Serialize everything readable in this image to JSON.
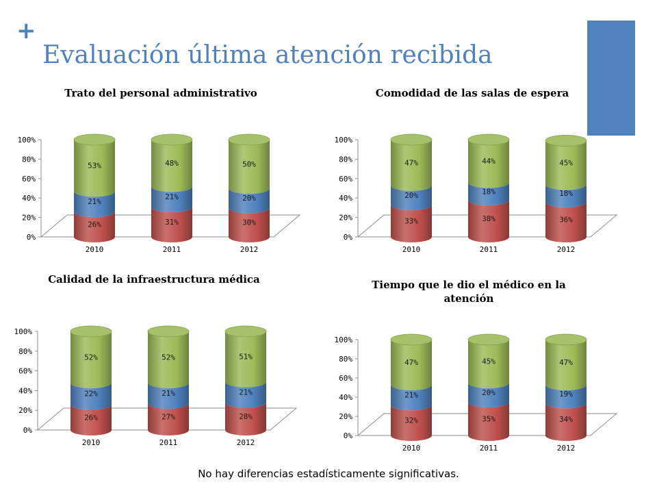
{
  "slide": {
    "title": "Evaluación última atención recibida",
    "footnote": "No hay diferencias estadísticamente significativas.",
    "accent_color": "#4F81BD"
  },
  "chart_data": [
    {
      "type": "bar",
      "title": "Trato del personal administrativo",
      "categories": [
        "2010",
        "2011",
        "2012"
      ],
      "stacked": true,
      "ylim": [
        0,
        100
      ],
      "yticks": [
        "0%",
        "20%",
        "40%",
        "60%",
        "80%",
        "100%"
      ],
      "series": [
        {
          "color": "#C0504D",
          "values": [
            26,
            31,
            30
          ],
          "labels": [
            "26%",
            "31%",
            "30%"
          ]
        },
        {
          "color": "#4F81BD",
          "values": [
            21,
            21,
            20
          ],
          "labels": [
            "21%",
            "21%",
            "20%"
          ]
        },
        {
          "color": "#9BBB59",
          "values": [
            53,
            48,
            50
          ],
          "labels": [
            "53%",
            "48%",
            "50%"
          ]
        }
      ]
    },
    {
      "type": "bar",
      "title": "Comodidad de las salas de espera",
      "categories": [
        "2010",
        "2011",
        "2012"
      ],
      "stacked": true,
      "ylim": [
        0,
        100
      ],
      "yticks": [
        "0%",
        "20%",
        "40%",
        "60%",
        "80%",
        "100%"
      ],
      "series": [
        {
          "color": "#C0504D",
          "values": [
            33,
            38,
            36
          ],
          "labels": [
            "33%",
            "38%",
            "36%"
          ]
        },
        {
          "color": "#4F81BD",
          "values": [
            20,
            18,
            18
          ],
          "labels": [
            "20%",
            "18%",
            "18%"
          ]
        },
        {
          "color": "#9BBB59",
          "values": [
            47,
            44,
            45
          ],
          "labels": [
            "47%",
            "44%",
            "45%"
          ]
        }
      ]
    },
    {
      "type": "bar",
      "title": "Calidad de la infraestructura médica",
      "categories": [
        "2010",
        "2011",
        "2012"
      ],
      "stacked": true,
      "ylim": [
        0,
        100
      ],
      "yticks": [
        "0%",
        "20%",
        "40%",
        "60%",
        "80%",
        "100%"
      ],
      "series": [
        {
          "color": "#C0504D",
          "values": [
            26,
            27,
            28
          ],
          "labels": [
            "26%",
            "27%",
            "28%"
          ]
        },
        {
          "color": "#4F81BD",
          "values": [
            22,
            21,
            21
          ],
          "labels": [
            "22%",
            "21%",
            "21%"
          ]
        },
        {
          "color": "#9BBB59",
          "values": [
            52,
            52,
            51
          ],
          "labels": [
            "52%",
            "52%",
            "51%"
          ]
        }
      ]
    },
    {
      "type": "bar",
      "title": "Tiempo que le dio el médico en la atención",
      "categories": [
        "2010",
        "2011",
        "2012"
      ],
      "stacked": true,
      "ylim": [
        0,
        100
      ],
      "yticks": [
        "0%",
        "20%",
        "40%",
        "60%",
        "80%",
        "100%"
      ],
      "series": [
        {
          "color": "#C0504D",
          "values": [
            32,
            35,
            34
          ],
          "labels": [
            "32%",
            "35%",
            "34%"
          ]
        },
        {
          "color": "#4F81BD",
          "values": [
            21,
            20,
            19
          ],
          "labels": [
            "21%",
            "20%",
            "19%"
          ]
        },
        {
          "color": "#9BBB59",
          "values": [
            47,
            45,
            47
          ],
          "labels": [
            "47%",
            "45%",
            "47%"
          ]
        }
      ]
    }
  ]
}
